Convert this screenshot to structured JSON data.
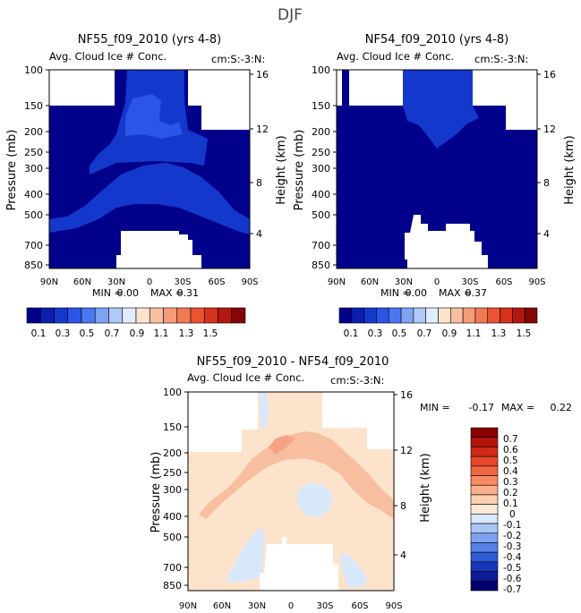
{
  "page_title": "DJF",
  "colors": {
    "dark": "#00008B",
    "mid_blue": "#1438CC",
    "blue2": "#2A55E6",
    "light_blue": "#D2E6FA",
    "cream": "#FDE3CC",
    "salmon": "#F8BEA0",
    "white": "#FFFFFF"
  },
  "chart_data": [
    {
      "id": "p1",
      "type": "heatmap",
      "title": "NF55_f09_2010 (yrs 4-8)",
      "subtitle": "Avg. Cloud Ice # Conc.",
      "units": "cm:S:-3:N:",
      "ylabel": "Pressure (mb)",
      "y2label": "Height (km)",
      "xticks": [
        "90N",
        "60N",
        "30N",
        "0",
        "30S",
        "60S",
        "90S"
      ],
      "yticks": [
        "100",
        "150",
        "200",
        "250",
        "300",
        "400",
        "500",
        "700",
        "850"
      ],
      "y2ticks": [
        "16",
        "12",
        "8",
        "4"
      ],
      "min_label": "MIN =",
      "min_value": "0.00",
      "max_label": "MAX =",
      "max_value": "0.31",
      "colorbar_labels": [
        "0.1",
        "0.3",
        "0.5",
        "0.7",
        "0.9",
        "1.1",
        "1.3",
        "1.5"
      ],
      "colorbar_colors": [
        "#00008B",
        "#0A1FB0",
        "#1438CC",
        "#2A55E6",
        "#4A78F0",
        "#7FA3F5",
        "#B0C9F8",
        "#E0ECFB",
        "#FDE3CC",
        "#F8BEA0",
        "#F49B78",
        "#F07A52",
        "#EA5433",
        "#D5321E",
        "#B31710",
        "#840606"
      ]
    },
    {
      "id": "p2",
      "type": "heatmap",
      "title": "NF54_f09_2010 (yrs 4-8)",
      "subtitle": "Avg. Cloud Ice # Conc.",
      "units": "cm:S:-3:N:",
      "ylabel": "Pressure (mb)",
      "y2label": "Height (km)",
      "xticks": [
        "90N",
        "60N",
        "30N",
        "0",
        "30S",
        "60S",
        "90S"
      ],
      "yticks": [
        "100",
        "150",
        "200",
        "250",
        "300",
        "400",
        "500",
        "700",
        "850"
      ],
      "y2ticks": [
        "16",
        "12",
        "8",
        "4"
      ],
      "min_label": "MIN =",
      "min_value": "0.00",
      "max_label": "MAX =",
      "max_value": "0.37",
      "colorbar_labels": [
        "0.1",
        "0.3",
        "0.5",
        "0.7",
        "0.9",
        "1.1",
        "1.3",
        "1.5"
      ],
      "colorbar_colors": [
        "#00008B",
        "#0A1FB0",
        "#1438CC",
        "#2A55E6",
        "#4A78F0",
        "#7FA3F5",
        "#B0C9F8",
        "#E0ECFB",
        "#FDE3CC",
        "#F8BEA0",
        "#F49B78",
        "#F07A52",
        "#EA5433",
        "#D5321E",
        "#B31710",
        "#840606"
      ]
    },
    {
      "id": "p3",
      "type": "heatmap",
      "title": "NF55_f09_2010 - NF54_f09_2010",
      "subtitle": "Avg. Cloud Ice # Conc.",
      "units": "cm:S:-3:N:",
      "ylabel": "Pressure (mb)",
      "y2label": "Height (km)",
      "xticks": [
        "90N",
        "60N",
        "30N",
        "0",
        "30S",
        "60S",
        "90S"
      ],
      "yticks": [
        "100",
        "150",
        "200",
        "250",
        "300",
        "400",
        "500",
        "700",
        "850"
      ],
      "y2ticks": [
        "16",
        "12",
        "8",
        "4"
      ],
      "min_label": "MIN =",
      "min_value": "-0.17",
      "max_label": "MAX =",
      "max_value": "0.22",
      "colorbar_labels": [
        "0.7",
        "0.6",
        "0.5",
        "0.4",
        "0.3",
        "0.2",
        "0.1",
        "0",
        "-0.1",
        "-0.2",
        "-0.3",
        "-0.4",
        "-0.5",
        "-0.6",
        "-0.7"
      ],
      "colorbar_colors": [
        "#8B0000",
        "#B2140C",
        "#D02A17",
        "#E6472A",
        "#F26642",
        "#F88A64",
        "#F9AE8C",
        "#FBCFB2",
        "#FDE9D8",
        "#D7E8FB",
        "#A8C6F5",
        "#7FA3F0",
        "#5580E6",
        "#2F5CD6",
        "#1538B8",
        "#0A1C96",
        "#00006E"
      ]
    }
  ]
}
